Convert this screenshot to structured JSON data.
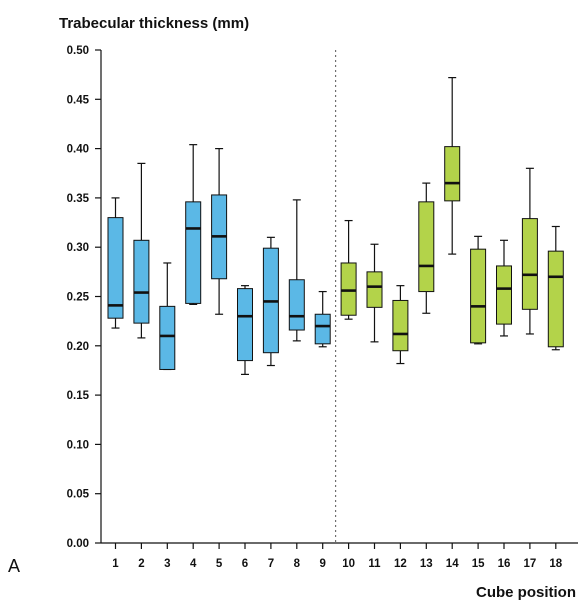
{
  "chart_data": {
    "type": "box",
    "title": "Trabecular thickness (mm)",
    "xlabel": "Cube position",
    "panel_label": "A",
    "ylim": [
      0,
      0.5
    ],
    "yticks": [
      "0.00",
      "0.05",
      "0.10",
      "0.15",
      "0.20",
      "0.25",
      "0.30",
      "0.35",
      "0.40",
      "0.45",
      "0.50"
    ],
    "ytick_values": [
      0,
      0.05,
      0.1,
      0.15,
      0.2,
      0.25,
      0.3,
      0.35,
      0.4,
      0.45,
      0.5
    ],
    "categories": [
      "1",
      "2",
      "3",
      "4",
      "5",
      "6",
      "7",
      "8",
      "9",
      "10",
      "11",
      "12",
      "13",
      "14",
      "15",
      "16",
      "17",
      "18"
    ],
    "divider_after": 9,
    "colors": {
      "group1": "#5bb8e6",
      "group2": "#b3d34a",
      "stroke": "#111111"
    },
    "boxes": [
      {
        "min": 0.218,
        "q1": 0.228,
        "median": 0.241,
        "q3": 0.33,
        "max": 0.35
      },
      {
        "min": 0.208,
        "q1": 0.223,
        "median": 0.254,
        "q3": 0.307,
        "max": 0.385
      },
      {
        "min": 0.176,
        "q1": 0.176,
        "median": 0.21,
        "q3": 0.24,
        "max": 0.284
      },
      {
        "min": 0.242,
        "q1": 0.243,
        "median": 0.319,
        "q3": 0.346,
        "max": 0.404
      },
      {
        "min": 0.232,
        "q1": 0.268,
        "median": 0.311,
        "q3": 0.353,
        "max": 0.4
      },
      {
        "min": 0.171,
        "q1": 0.185,
        "median": 0.23,
        "q3": 0.258,
        "max": 0.261
      },
      {
        "min": 0.18,
        "q1": 0.193,
        "median": 0.245,
        "q3": 0.299,
        "max": 0.31
      },
      {
        "min": 0.205,
        "q1": 0.216,
        "median": 0.23,
        "q3": 0.267,
        "max": 0.348
      },
      {
        "min": 0.199,
        "q1": 0.202,
        "median": 0.22,
        "q3": 0.232,
        "max": 0.255
      },
      {
        "min": 0.227,
        "q1": 0.231,
        "median": 0.256,
        "q3": 0.284,
        "max": 0.327
      },
      {
        "min": 0.204,
        "q1": 0.239,
        "median": 0.26,
        "q3": 0.275,
        "max": 0.303
      },
      {
        "min": 0.182,
        "q1": 0.195,
        "median": 0.212,
        "q3": 0.246,
        "max": 0.261
      },
      {
        "min": 0.233,
        "q1": 0.255,
        "median": 0.281,
        "q3": 0.346,
        "max": 0.365
      },
      {
        "min": 0.293,
        "q1": 0.347,
        "median": 0.365,
        "q3": 0.402,
        "max": 0.472
      },
      {
        "min": 0.202,
        "q1": 0.203,
        "median": 0.24,
        "q3": 0.298,
        "max": 0.311
      },
      {
        "min": 0.21,
        "q1": 0.222,
        "median": 0.258,
        "q3": 0.281,
        "max": 0.307
      },
      {
        "min": 0.212,
        "q1": 0.237,
        "median": 0.272,
        "q3": 0.329,
        "max": 0.38
      },
      {
        "min": 0.196,
        "q1": 0.199,
        "median": 0.27,
        "q3": 0.296,
        "max": 0.321
      }
    ]
  }
}
